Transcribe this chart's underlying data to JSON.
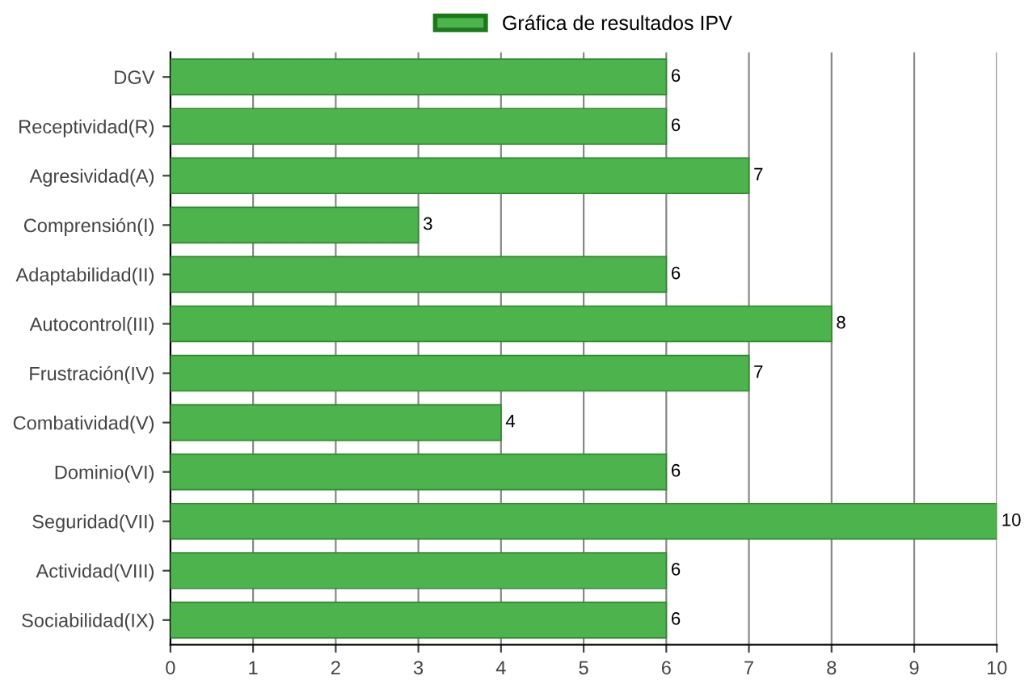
{
  "chart_data": {
    "type": "bar",
    "orientation": "horizontal",
    "categories": [
      "DGV",
      "Receptividad(R)",
      "Agresividad(A)",
      "Comprensión(I)",
      "Adaptabilidad(II)",
      "Autocontrol(III)",
      "Frustración(IV)",
      "Combatividad(V)",
      "Dominio(VI)",
      "Seguridad(VII)",
      "Actividad(VIII)",
      "Sociabilidad(IX)"
    ],
    "series": [
      {
        "name": "Gráfica de resultados IPV",
        "color": "#4db34d",
        "values": [
          6,
          6,
          7,
          3,
          6,
          8,
          7,
          4,
          6,
          10,
          6,
          6
        ]
      }
    ],
    "xlim": [
      0,
      10
    ],
    "xticks": [
      0,
      1,
      2,
      3,
      4,
      5,
      6,
      7,
      8,
      9,
      10
    ],
    "grid": "x",
    "legend": "top",
    "data_labels": true
  }
}
